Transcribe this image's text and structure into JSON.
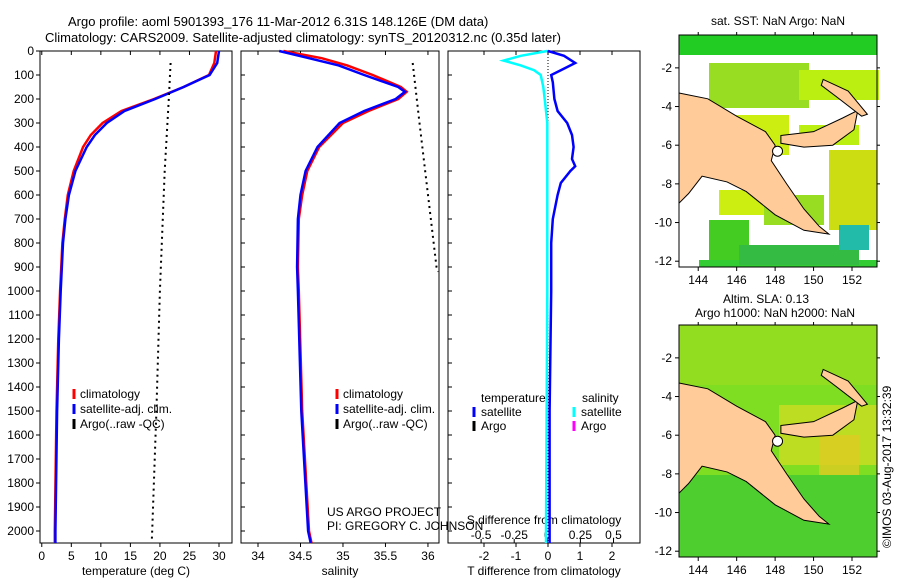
{
  "titles": {
    "line1": "Argo profile: aoml 5901393_176 11-Mar-2012 6.31S 148.126E (DM data)",
    "line2": "Climatology: CARS2009. Satellite-adjusted climatology: synTS_20120312.nc (0.35d later)"
  },
  "credits": {
    "project": "US ARGO PROJECT",
    "pi": "PI: GREGORY C. JOHNSON",
    "copyright": "©IMOS 03-Aug-2017 13:32:39"
  },
  "colors": {
    "climatology": "#ff0000",
    "satellite": "#0000ff",
    "argo": "#000000",
    "sal_satellite": "#00ffff",
    "sal_argo": "#ff00ff",
    "land": "#ffcc99",
    "ocean": "#22cc22"
  },
  "chart_data": [
    {
      "type": "line",
      "name": "temperature",
      "xlabel": "temperature (deg C)",
      "ylabel": "depth",
      "xlim": [
        -0.3,
        32.2
      ],
      "ylim": [
        2050,
        0
      ],
      "xticks": [
        0,
        5,
        10,
        15,
        20,
        25,
        30
      ],
      "yticks": [
        0,
        100,
        200,
        300,
        400,
        500,
        600,
        700,
        800,
        900,
        1000,
        1100,
        1200,
        1300,
        1400,
        1500,
        1600,
        1700,
        1800,
        1900,
        2000
      ],
      "legend": [
        "climatology",
        "satellite-adj. clim.",
        "Argo(..raw -QC)"
      ],
      "series": [
        {
          "name": "climatology",
          "depth": [
            0,
            50,
            100,
            150,
            200,
            250,
            300,
            350,
            400,
            500,
            600,
            700,
            800,
            1000,
            1200,
            1500,
            2000,
            2050
          ],
          "values": [
            29.5,
            29.2,
            28.3,
            24,
            19,
            13.5,
            10.3,
            8.3,
            7,
            5.4,
            4.4,
            3.9,
            3.5,
            3.1,
            2.8,
            2.5,
            2.2,
            2.2
          ]
        },
        {
          "name": "satellite-adj. clim.",
          "depth": [
            0,
            50,
            100,
            150,
            200,
            250,
            300,
            350,
            400,
            500,
            600,
            700,
            800,
            1000,
            1200,
            1500,
            2000,
            2050
          ],
          "values": [
            30,
            29.7,
            28.4,
            24,
            19.2,
            14,
            11,
            9,
            7.6,
            5.7,
            4.6,
            4,
            3.6,
            3.2,
            2.9,
            2.6,
            2.3,
            2.3
          ]
        },
        {
          "name": "Argo(..raw -QC)",
          "depth": [
            50,
            200,
            500,
            1000,
            1500,
            2000,
            2050
          ],
          "values": [
            21.8,
            21.5,
            20.8,
            20,
            19.4,
            18.7,
            18.6
          ]
        }
      ]
    },
    {
      "type": "line",
      "name": "salinity",
      "xlabel": "salinity",
      "xlim": [
        33.8,
        36.13
      ],
      "ylim": [
        2050,
        0
      ],
      "xticks": [
        34,
        34.5,
        35,
        35.5,
        36
      ],
      "legend": [
        "climatology",
        "satellite-adj. clim.",
        "Argo(..raw -QC)"
      ],
      "series": [
        {
          "name": "climatology",
          "depth": [
            0,
            30,
            60,
            100,
            150,
            170,
            200,
            250,
            300,
            400,
            500,
            600,
            700,
            900,
            1000,
            1500,
            2000,
            2050
          ],
          "values": [
            34.3,
            34.75,
            35.05,
            35.35,
            35.68,
            35.75,
            35.65,
            35.3,
            35.0,
            34.72,
            34.58,
            34.52,
            34.48,
            34.47,
            34.48,
            34.52,
            34.6,
            34.63
          ]
        },
        {
          "name": "satellite-adj. clim.",
          "depth": [
            0,
            30,
            60,
            100,
            150,
            170,
            200,
            250,
            300,
            400,
            500,
            600,
            700,
            900,
            1000,
            1500,
            2000,
            2050
          ],
          "values": [
            34.25,
            34.6,
            34.95,
            35.25,
            35.65,
            35.73,
            35.62,
            35.25,
            34.96,
            34.7,
            34.56,
            34.5,
            34.47,
            34.46,
            34.47,
            34.51,
            34.59,
            34.62
          ]
        },
        {
          "name": "Argo(..raw -QC)",
          "depth": [
            50,
            300,
            600,
            900,
            920
          ],
          "values": [
            35.82,
            35.9,
            36.0,
            36.1,
            36.12
          ]
        }
      ]
    },
    {
      "type": "line",
      "name": "difference",
      "xlabel": "T difference from climatology",
      "x2label": "S difference from climatology",
      "xlim": [
        -3.125,
        2.875
      ],
      "x2lim": [
        -0.75,
        0.7
      ],
      "ylim": [
        2050,
        0
      ],
      "xticks": [
        -2,
        -1,
        0,
        1,
        2
      ],
      "x2ticks": [
        -0.5,
        -0.25,
        0,
        0.25,
        0.5
      ],
      "legend": {
        "temperature": "temperature",
        "salinity": "salinity",
        "satellite": "satellite",
        "argo": "Argo"
      },
      "series": [
        {
          "name": "temperature satellite",
          "depth": [
            0,
            20,
            50,
            80,
            100,
            130,
            200,
            250,
            300,
            350,
            400,
            450,
            480,
            500,
            550,
            600,
            700,
            800,
            1000,
            1500,
            2000,
            2050
          ],
          "values": [
            0,
            0.5,
            0.85,
            0.4,
            0.1,
            0.15,
            0.2,
            0.3,
            0.6,
            0.75,
            0.8,
            0.75,
            0.85,
            0.7,
            0.4,
            0.3,
            0.15,
            0.1,
            0.1,
            0.05,
            0.05,
            0.05
          ]
        },
        {
          "name": "salinity satellite",
          "depth": [
            0,
            20,
            40,
            60,
            80,
            100,
            150,
            200,
            300,
            500,
            1000,
            2000,
            2050
          ],
          "values": [
            0,
            -0.2,
            -0.33,
            -0.2,
            -0.1,
            -0.05,
            -0.03,
            -0.02,
            0,
            0,
            0,
            -0.01,
            -0.01
          ]
        }
      ]
    },
    {
      "type": "heatmap",
      "name": "sst-map",
      "title": "sat. SST: NaN Argo: NaN",
      "xticks": [
        144,
        146,
        148,
        150,
        152
      ],
      "yticks": [
        -2,
        -4,
        -6,
        -8,
        -10,
        -12
      ],
      "xlim": [
        143,
        153.3
      ],
      "ylim": [
        -12.3,
        -0.3
      ],
      "argo_position": [
        148.126,
        -6.31
      ]
    },
    {
      "type": "heatmap",
      "name": "sla-map",
      "title1": "Altim. SLA: 0.13",
      "title2": "Argo h1000: NaN h2000: NaN",
      "xticks": [
        144,
        146,
        148,
        150,
        152
      ],
      "yticks": [
        -2,
        -4,
        -6,
        -8,
        -10,
        -12
      ],
      "xlim": [
        143,
        153.3
      ],
      "ylim": [
        -12.3,
        -0.3
      ],
      "argo_position": [
        148.126,
        -6.31
      ]
    }
  ]
}
